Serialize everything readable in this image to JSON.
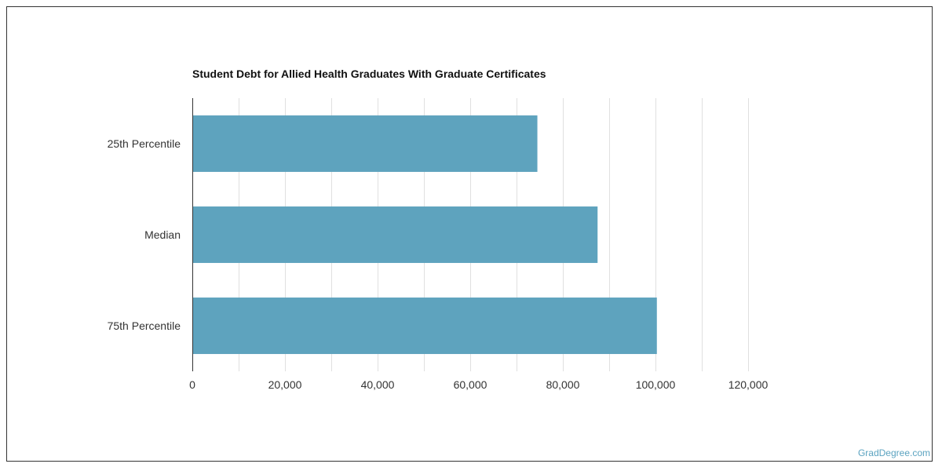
{
  "chart_data": {
    "type": "bar",
    "orientation": "horizontal",
    "title": "Student Debt for Allied Health Graduates With Graduate Certificates",
    "categories": [
      "25th Percentile",
      "Median",
      "75th Percentile"
    ],
    "values": [
      74500,
      87500,
      100300
    ],
    "xlim": [
      0,
      120000
    ],
    "x_ticks": [
      0,
      20000,
      40000,
      60000,
      80000,
      100000,
      120000
    ],
    "x_tick_labels": [
      "0",
      "20,000",
      "40,000",
      "60,000",
      "80,000",
      "100,000",
      "120,000"
    ],
    "bar_color": "#5ea3be",
    "grid": true,
    "xlabel": "",
    "ylabel": ""
  },
  "watermark": "GradDegree.com",
  "colors": {
    "bar": "#5ea3be",
    "watermark": "#5ba3c0",
    "grid": "#e0e0e0",
    "axis": "#333333"
  }
}
